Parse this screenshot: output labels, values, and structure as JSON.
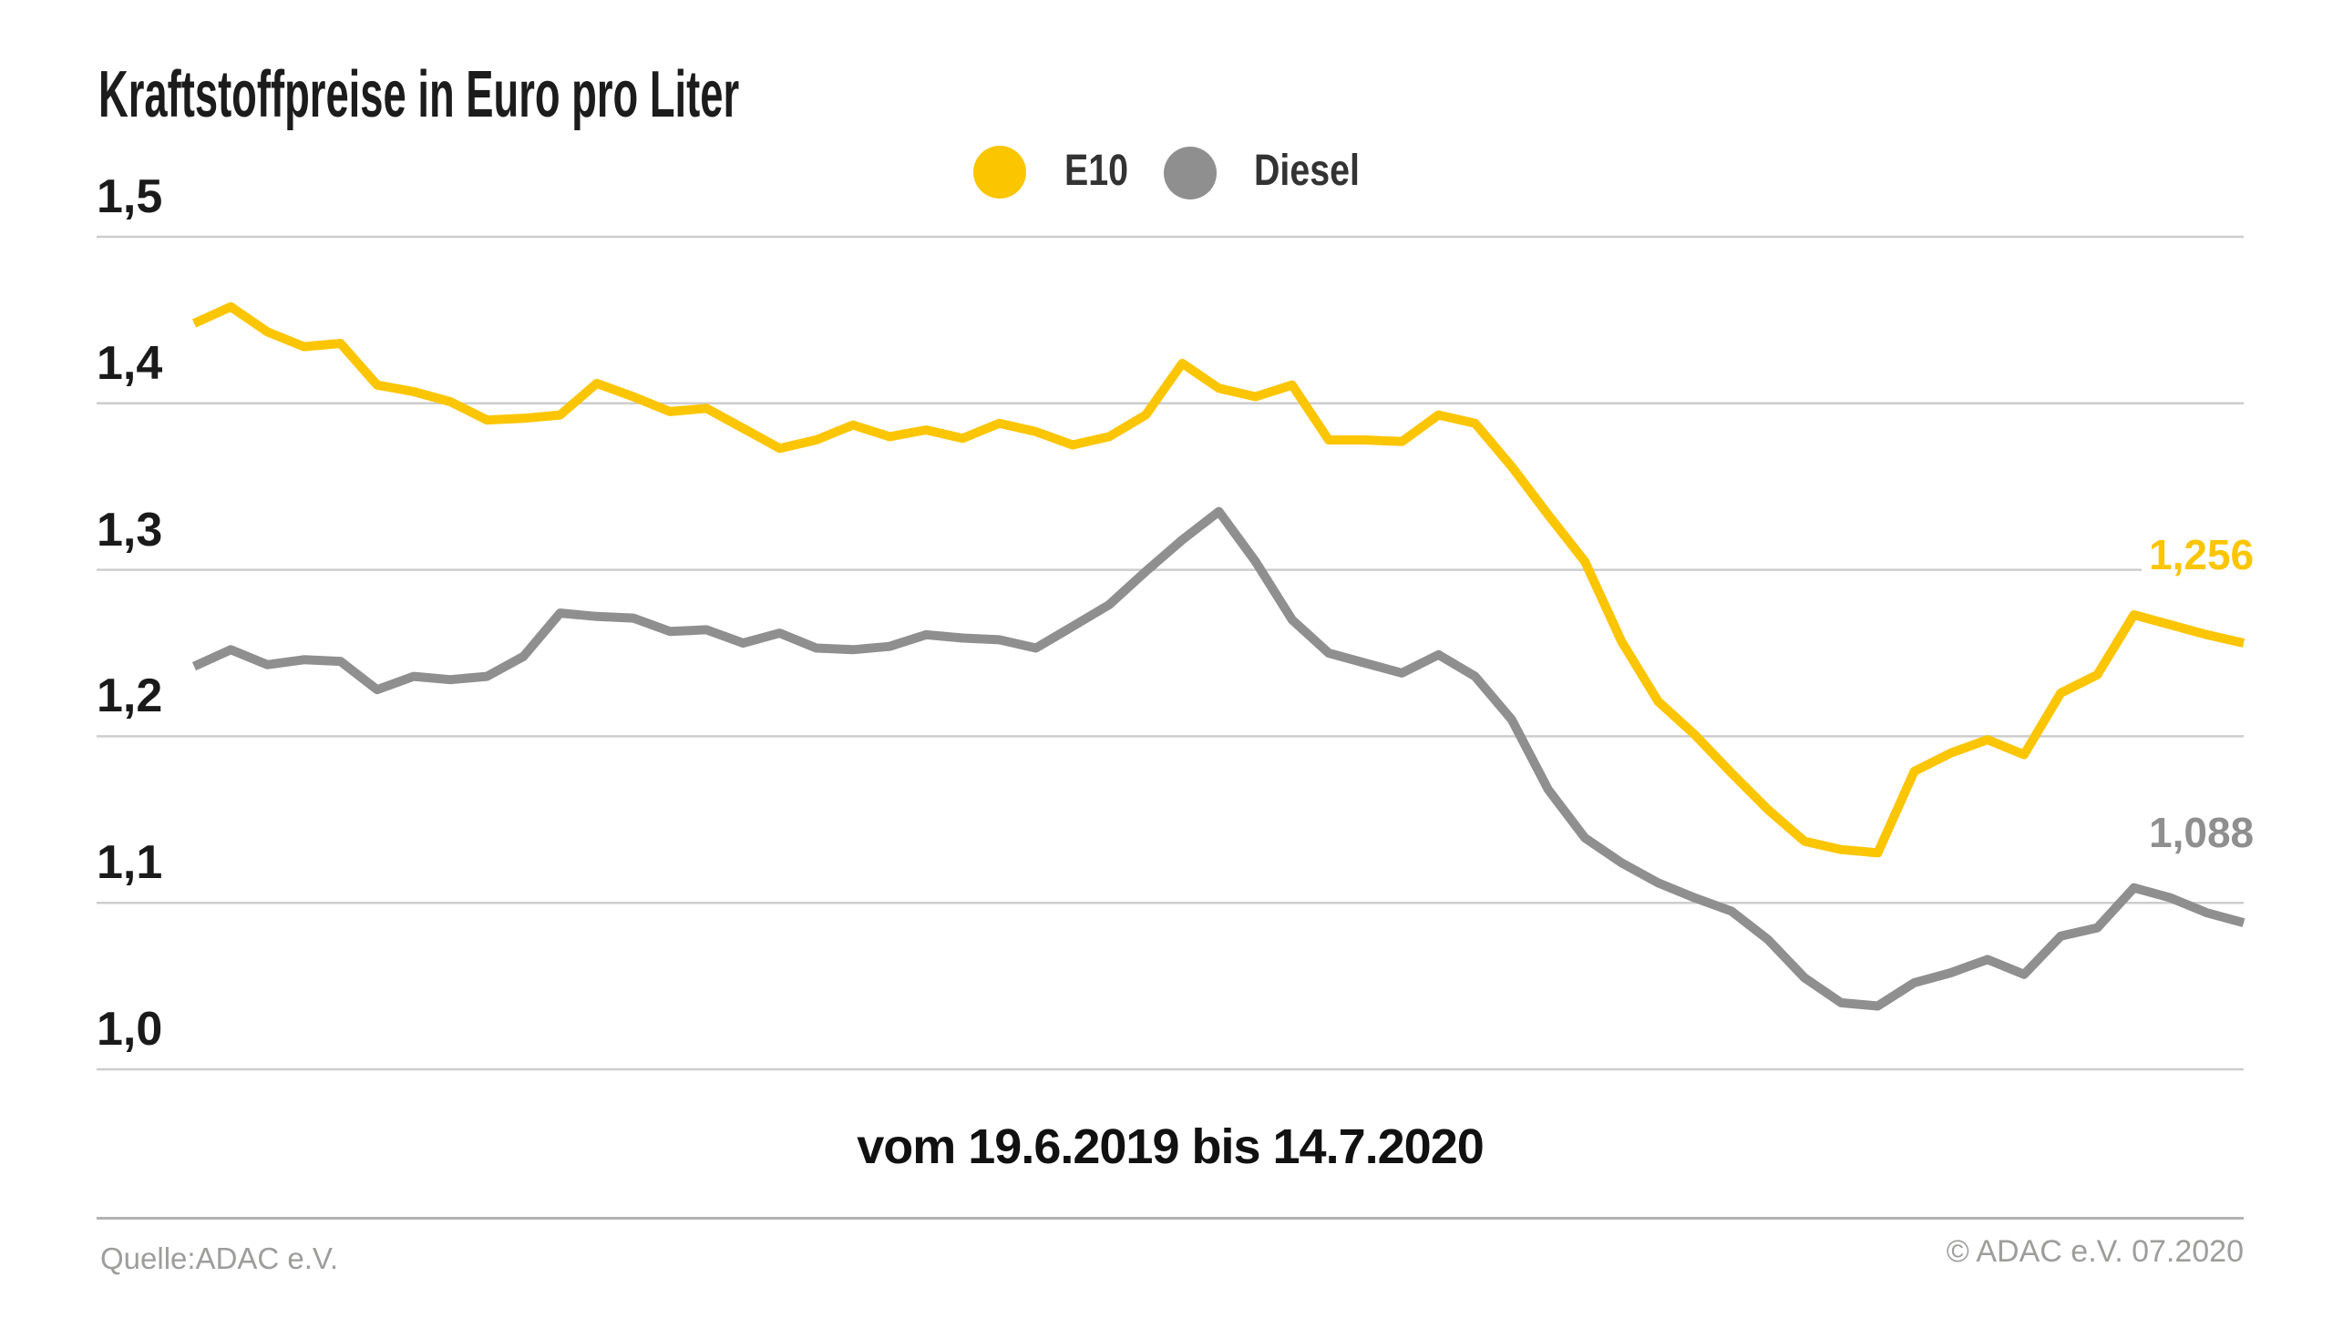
{
  "header": {
    "title": "Kraftstoffpreise in Euro pro Liter"
  },
  "legend": {
    "items": [
      {
        "label": "E10",
        "color": "#FBC500"
      },
      {
        "label": "Diesel",
        "color": "#8F8F8F"
      }
    ]
  },
  "footer": {
    "source": "Quelle:ADAC e.V.",
    "copyright": "© ADAC e.V. 07.2020"
  },
  "chart_data": {
    "type": "line",
    "title": "Kraftstoffpreise in Euro pro Liter",
    "subtitle": "vom 19.6.2019 bis 14.7.2020",
    "x_start_label": "19.6.2019",
    "x_end_label": "14.7.2020",
    "x_interval": "weekly",
    "y_unit": "Euro pro Liter",
    "ylim": [
      0.97,
      1.55
    ],
    "grid": "horizontal",
    "legend_position": "top-center",
    "y_ticks": [
      {
        "label": "1,5",
        "value": 1.5
      },
      {
        "label": "1,4",
        "value": 1.4
      },
      {
        "label": "1,3",
        "value": 1.3
      },
      {
        "label": "1,2",
        "value": 1.2
      },
      {
        "label": "1,1",
        "value": 1.1
      },
      {
        "label": "1,0",
        "value": 1.0
      }
    ],
    "series": [
      {
        "name": "E10",
        "color": "#FBC500",
        "final_value": 1.256,
        "values": [
          1.448,
          1.458,
          1.443,
          1.434,
          1.436,
          1.411,
          1.407,
          1.401,
          1.39,
          1.391,
          1.393,
          1.412,
          1.404,
          1.395,
          1.397,
          1.385,
          1.373,
          1.378,
          1.387,
          1.38,
          1.384,
          1.379,
          1.388,
          1.383,
          1.375,
          1.38,
          1.393,
          1.424,
          1.409,
          1.404,
          1.411,
          1.378,
          1.378,
          1.377,
          1.393,
          1.388,
          1.362,
          1.333,
          1.305,
          1.257,
          1.221,
          1.201,
          1.178,
          1.156,
          1.137,
          1.132,
          1.13,
          1.179,
          1.19,
          1.198,
          1.189,
          1.226,
          1.237,
          1.273,
          1.267,
          1.261,
          1.256
        ]
      },
      {
        "name": "Diesel",
        "color": "#8F8F8F",
        "final_value": 1.088,
        "values": [
          1.242,
          1.252,
          1.243,
          1.246,
          1.245,
          1.228,
          1.236,
          1.234,
          1.236,
          1.248,
          1.274,
          1.272,
          1.271,
          1.263,
          1.264,
          1.256,
          1.262,
          1.253,
          1.252,
          1.254,
          1.261,
          1.259,
          1.258,
          1.253,
          1.266,
          1.279,
          1.299,
          1.318,
          1.335,
          1.305,
          1.27,
          1.25,
          1.244,
          1.238,
          1.249,
          1.236,
          1.21,
          1.168,
          1.139,
          1.124,
          1.112,
          1.103,
          1.095,
          1.078,
          1.055,
          1.04,
          1.038,
          1.052,
          1.058,
          1.066,
          1.057,
          1.08,
          1.085,
          1.109,
          1.103,
          1.094,
          1.088
        ]
      }
    ],
    "end_labels": {
      "e10": "1,256",
      "diesel": "1,088"
    },
    "colors": {
      "gridline": "#CDCDCD"
    }
  }
}
